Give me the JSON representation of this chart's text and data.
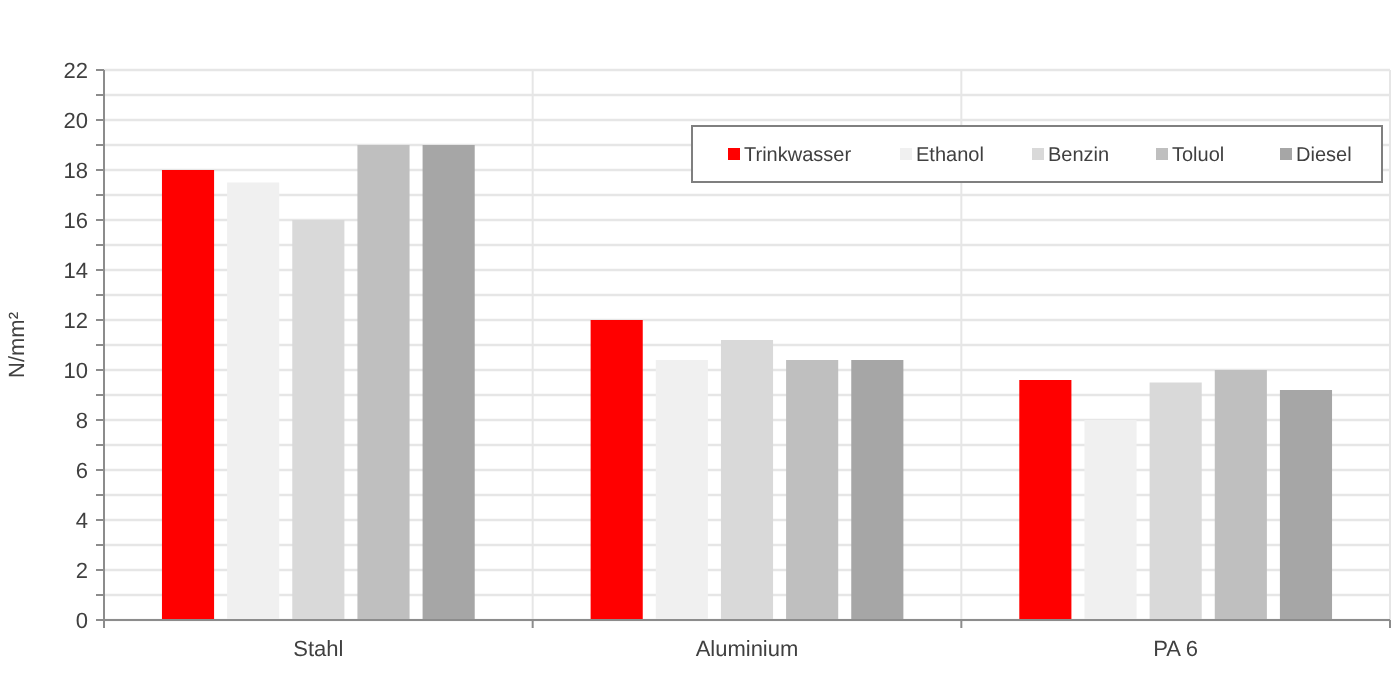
{
  "chart_data": {
    "type": "bar",
    "ylabel": "N/mm²",
    "categories": [
      "Stahl",
      "Aluminium",
      "PA 6"
    ],
    "series": [
      {
        "name": "Trinkwasser",
        "color": "#ff0000",
        "values": [
          18,
          12,
          9.6
        ]
      },
      {
        "name": "Ethanol",
        "color": "#f0f0f0",
        "values": [
          17.5,
          10.4,
          8
        ]
      },
      {
        "name": "Benzin",
        "color": "#d9d9d9",
        "values": [
          16,
          11.2,
          9.5
        ]
      },
      {
        "name": "Toluol",
        "color": "#bfbfbf",
        "values": [
          19,
          10.4,
          10
        ]
      },
      {
        "name": "Diesel",
        "color": "#a6a6a6",
        "values": [
          19,
          10.4,
          9.2
        ]
      }
    ],
    "ylim": [
      0,
      22
    ],
    "yticks": [
      0,
      {
        "value": 1,
        "label": null
      },
      2,
      {
        "value": 3,
        "label": null
      },
      4,
      {
        "value": 5,
        "label": null
      },
      6,
      {
        "value": 7,
        "label": null
      },
      8,
      {
        "value": 9,
        "label": null
      },
      10,
      {
        "value": 11,
        "label": null
      },
      12,
      {
        "value": 13,
        "label": null
      },
      14,
      {
        "value": 15,
        "label": null
      },
      16,
      {
        "value": 17,
        "label": null
      },
      18,
      {
        "value": 19,
        "label": null
      },
      20,
      {
        "value": 21,
        "label": null
      },
      22
    ],
    "grid": true,
    "legend": "top right"
  }
}
